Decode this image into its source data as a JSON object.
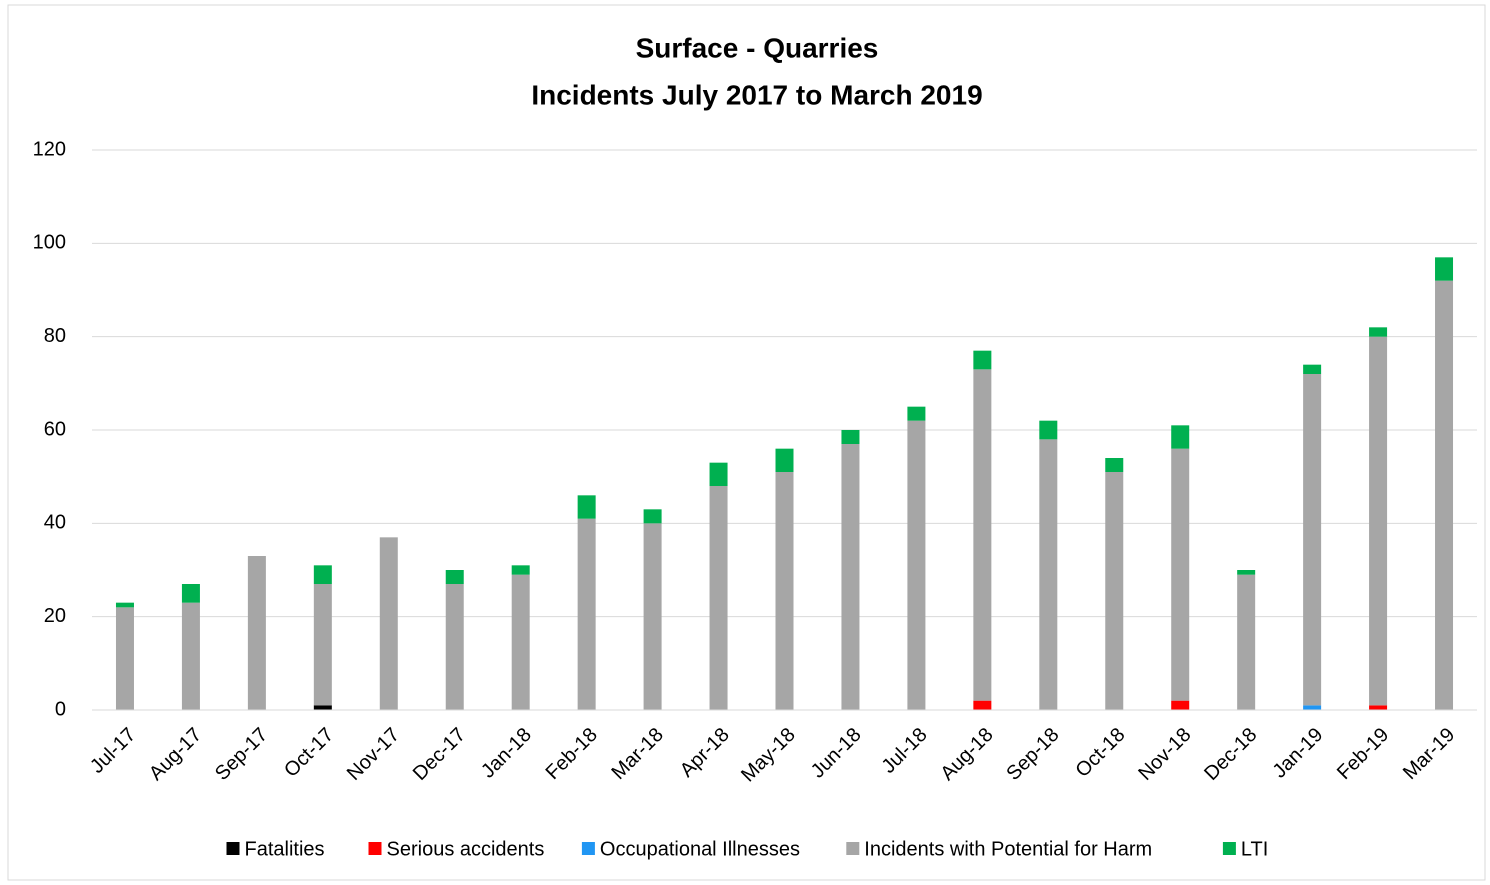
{
  "chart_data": {
    "type": "stacked_bar",
    "title": [
      "Surface - Quarries",
      "Incidents July 2017 to March 2019"
    ],
    "categories": [
      "Jul-17",
      "Aug-17",
      "Sep-17",
      "Oct-17",
      "Nov-17",
      "Dec-17",
      "Jan-18",
      "Feb-18",
      "Mar-18",
      "Apr-18",
      "May-18",
      "Jun-18",
      "Jul-18",
      "Aug-18",
      "Sep-18",
      "Oct-18",
      "Nov-18",
      "Dec-18",
      "Jan-19",
      "Feb-19",
      "Mar-19"
    ],
    "series": [
      {
        "name": "Fatalities",
        "color": "#000000",
        "values": [
          0,
          0,
          0,
          1,
          0,
          0,
          0,
          0,
          0,
          0,
          0,
          0,
          0,
          0,
          0,
          0,
          0,
          0,
          0,
          0,
          0
        ]
      },
      {
        "name": "Serious accidents",
        "color": "#ff0000",
        "values": [
          0,
          0,
          0,
          0,
          0,
          0,
          0,
          0,
          0,
          0,
          0,
          0,
          0,
          2,
          0,
          0,
          2,
          0,
          0,
          1,
          0
        ]
      },
      {
        "name": "Occupational Illnesses",
        "color": "#2196f3",
        "values": [
          0,
          0,
          0,
          0,
          0,
          0,
          0,
          0,
          0,
          0,
          0,
          0,
          0,
          0,
          0,
          0,
          0,
          0,
          1,
          0,
          0
        ]
      },
      {
        "name": "Incidents with Potential for Harm",
        "color": "#a6a6a6",
        "values": [
          22,
          23,
          33,
          26,
          37,
          27,
          29,
          41,
          40,
          48,
          51,
          57,
          62,
          71,
          58,
          51,
          54,
          29,
          71,
          79,
          92
        ]
      },
      {
        "name": "LTI",
        "color": "#00b050",
        "values": [
          1,
          4,
          0,
          4,
          0,
          3,
          2,
          5,
          3,
          5,
          5,
          3,
          3,
          4,
          4,
          3,
          5,
          1,
          2,
          2,
          5
        ]
      }
    ],
    "ylim": [
      0,
      120
    ],
    "yticks": [
      0,
      20,
      40,
      60,
      80,
      100,
      120
    ],
    "grid": true,
    "legend": "bottom"
  }
}
